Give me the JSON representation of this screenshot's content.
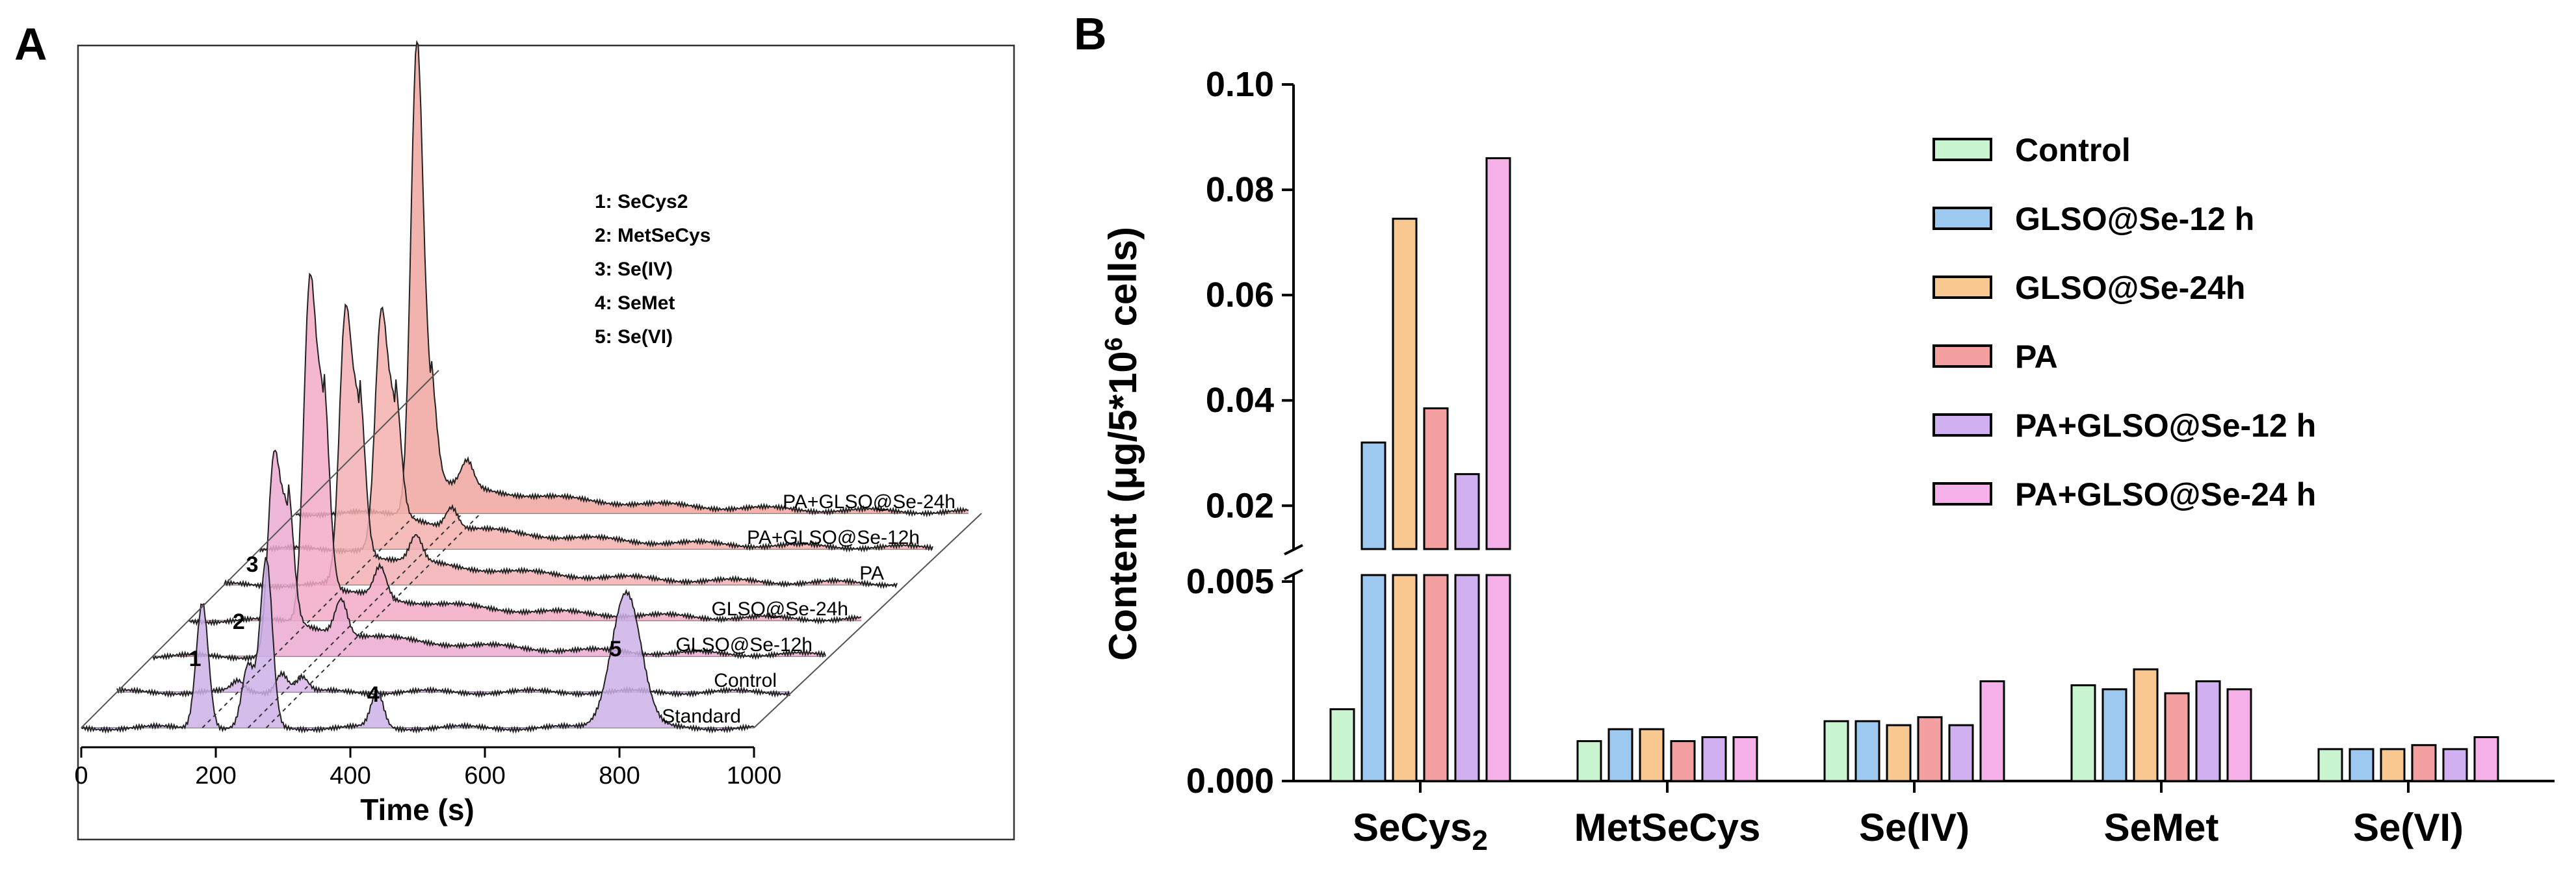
{
  "panel_a": {
    "letter": "A",
    "chart_data": {
      "type": "line",
      "title": "",
      "xlabel": "Time (s)",
      "xlim": [
        0,
        1000
      ],
      "x_ticks": [
        "0",
        "200",
        "400",
        "600",
        "800",
        "1000"
      ],
      "legend_title_entries": [
        "1: SeCys2",
        "2: MetSeCys",
        "3: Se(IV)",
        "4: SeMet",
        "5: Se(VI)"
      ],
      "peak_numbers": [
        "1",
        "2",
        "3",
        "4",
        "5"
      ],
      "series": [
        {
          "name": "Standard",
          "peaks": [
            {
              "t": 180,
              "h": 0.25
            },
            {
              "t": 248,
              "h": 0.12
            },
            {
              "t": 275,
              "h": 0.33
            },
            {
              "t": 440,
              "h": 0.07
            },
            {
              "t": 810,
              "h": 0.27
            }
          ],
          "color": "#cdb0e8"
        },
        {
          "name": "Control",
          "peaks": [
            {
              "t": 180,
              "h": 0.02
            },
            {
              "t": 245,
              "h": 0.04
            },
            {
              "t": 275,
              "h": 0.03
            }
          ],
          "color": "#d9b4e8"
        },
        {
          "name": "GLSO@Se-12h",
          "peaks": [
            {
              "t": 180,
              "h": 0.38
            },
            {
              "t": 200,
              "h": 0.26
            },
            {
              "t": 280,
              "h": 0.07
            }
          ],
          "color": "#ecaad0"
        },
        {
          "name": "GLSO@Se-24h",
          "peaks": [
            {
              "t": 180,
              "h": 0.65
            },
            {
              "t": 200,
              "h": 0.4
            },
            {
              "t": 285,
              "h": 0.06
            }
          ],
          "color": "#f2aac4"
        },
        {
          "name": "PA",
          "peaks": [
            {
              "t": 180,
              "h": 0.52
            },
            {
              "t": 200,
              "h": 0.32
            },
            {
              "t": 285,
              "h": 0.05
            }
          ],
          "color": "#f2b0b4"
        },
        {
          "name": "PA+GLSO@Se-12h",
          "peaks": [
            {
              "t": 180,
              "h": 0.45
            },
            {
              "t": 200,
              "h": 0.25
            },
            {
              "t": 285,
              "h": 0.04
            }
          ],
          "color": "#f3b0ae"
        },
        {
          "name": "PA+GLSO@Se-24h",
          "peaks": [
            {
              "t": 180,
              "h": 0.92
            },
            {
              "t": 200,
              "h": 0.2
            },
            {
              "t": 255,
              "h": 0.05
            }
          ],
          "color": "#f0a6a0"
        }
      ]
    }
  },
  "panel_b": {
    "letter": "B",
    "chart_data": {
      "type": "bar",
      "title": "",
      "xlabel": "",
      "ylabel": "Content (μg/5*10",
      "ylabel_sup": "6",
      "ylabel_end": " cells)",
      "axis_break": {
        "lower_range": [
          0,
          0.005
        ],
        "upper_range": [
          0.013,
          0.1
        ]
      },
      "y_ticks_lower": [
        "0.000",
        "0.005"
      ],
      "y_ticks_upper": [
        "0.02",
        "0.04",
        "0.06",
        "0.08",
        "0.10"
      ],
      "categories": [
        "SeCys",
        "MetSeCys",
        "Se(IV)",
        "SeMet",
        "Se(VI)"
      ],
      "category_subscript": "2",
      "series": [
        {
          "name": "Control",
          "color": "#c8f5d0",
          "values": [
            0.0018,
            0.001,
            0.0015,
            0.0024,
            0.0008
          ]
        },
        {
          "name": "GLSO@Se-12 h",
          "color": "#9dc8f0",
          "values": [
            0.032,
            0.0013,
            0.0015,
            0.0023,
            0.0008
          ]
        },
        {
          "name": "GLSO@Se-24h",
          "color": "#f8c890",
          "values": [
            0.0745,
            0.0013,
            0.0014,
            0.0028,
            0.0008
          ]
        },
        {
          "name": "PA",
          "color": "#f5a0a0",
          "values": [
            0.0385,
            0.001,
            0.0016,
            0.0022,
            0.0009
          ]
        },
        {
          "name": "PA+GLSO@Se-12 h",
          "color": "#d0b0f0",
          "values": [
            0.026,
            0.0011,
            0.0014,
            0.0025,
            0.0008
          ]
        },
        {
          "name": "PA+GLSO@Se-24 h",
          "color": "#f5b0ea",
          "values": [
            0.086,
            0.0011,
            0.0025,
            0.0023,
            0.0011
          ]
        }
      ]
    }
  }
}
